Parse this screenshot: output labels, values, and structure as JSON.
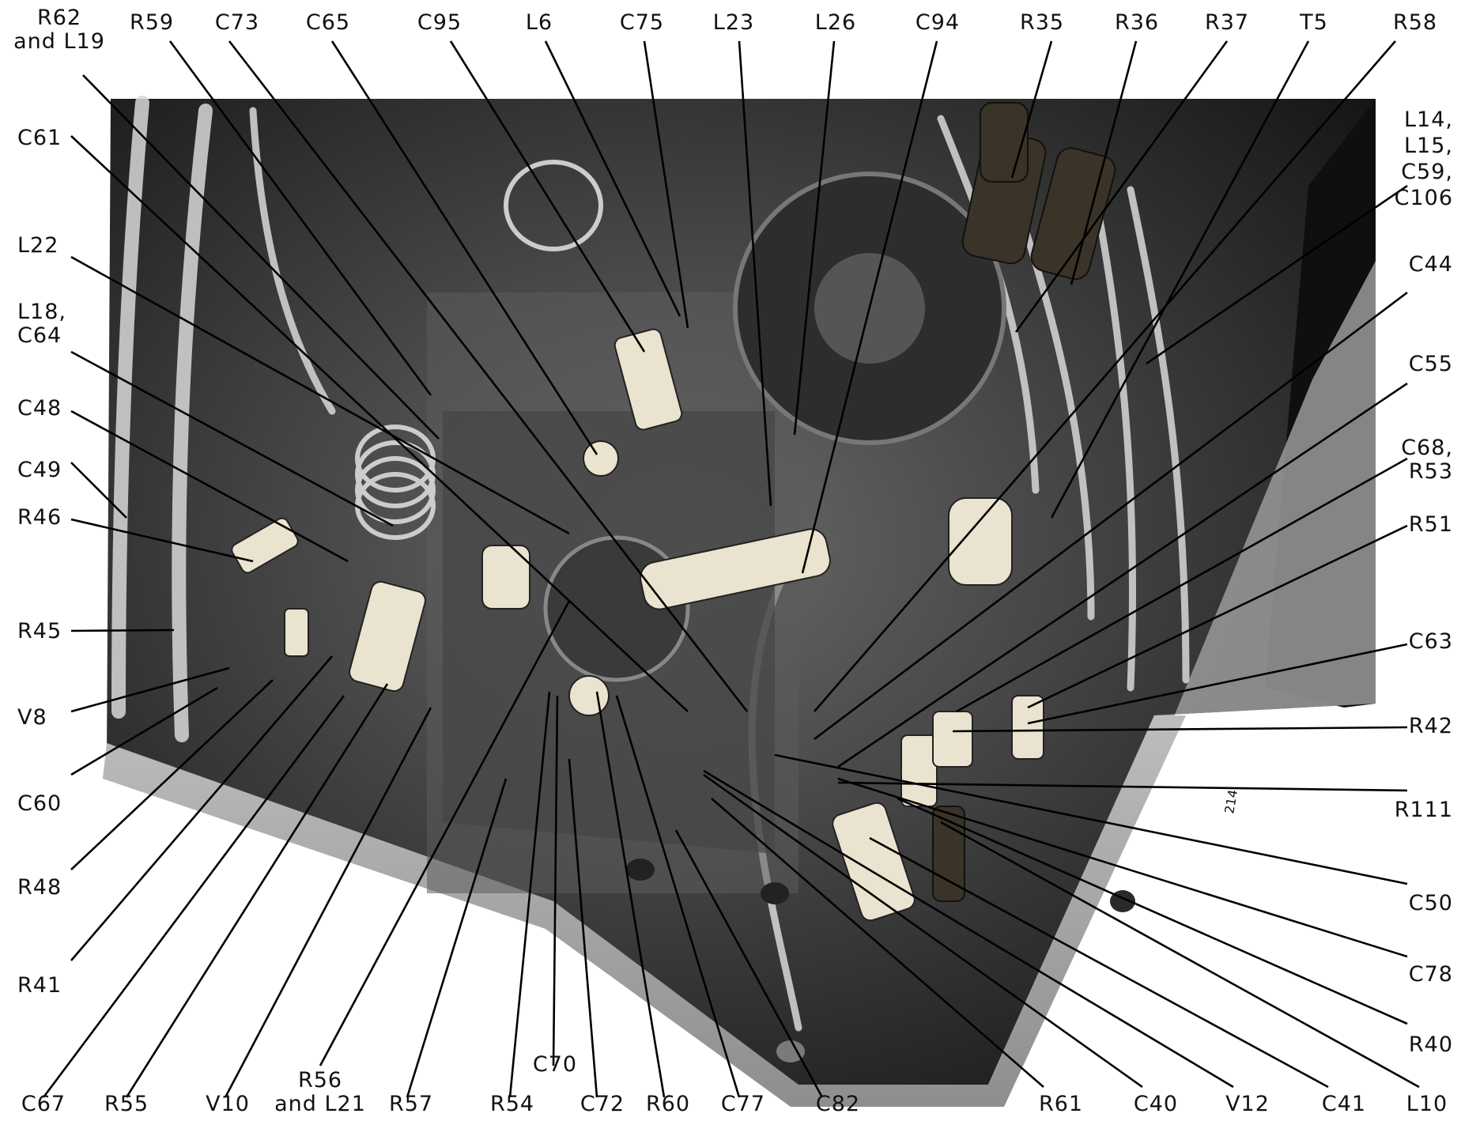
{
  "labels": {
    "top": {
      "r62_l19": "R62\nand L19",
      "r59": "R59",
      "c73": "C73",
      "c65": "C65",
      "c95": "C95",
      "l6": "L6",
      "c75": "C75",
      "l23": "L23",
      "l26": "L26",
      "c94": "C94",
      "r35": "R35",
      "r36": "R36",
      "r37": "R37",
      "t5": "T5",
      "r58": "R58"
    },
    "left": {
      "c61": "C61",
      "l22": "L22",
      "l18_c64": "L18,\nC64",
      "c48": "C48",
      "c49": "C49",
      "r46": "R46",
      "r45": "R45",
      "v8": "V8",
      "c60": "C60",
      "r48": "R48",
      "r41": "R41"
    },
    "right": {
      "l14_group": "L14,\nL15,\nC59,\nC106",
      "c44": "C44",
      "c55": "C55",
      "c68_r53": "C68,\nR53",
      "r51": "R51",
      "c63": "C63",
      "r42": "R42",
      "r111": "R111",
      "c50": "C50",
      "c78": "C78",
      "r40": "R40"
    },
    "bottom": {
      "c67": "C67",
      "r55": "R55",
      "v10": "V10",
      "r56_l21": "R56\nand L21",
      "r57": "R57",
      "r54": "R54",
      "c70": "C70",
      "c72": "C72",
      "r60": "R60",
      "c77": "C77",
      "c82": "C82",
      "r61": "R61",
      "c40": "C40",
      "v12": "V12",
      "c41": "C41",
      "l10": "L10"
    }
  },
  "photo_markings": {
    "page_number": "214"
  }
}
